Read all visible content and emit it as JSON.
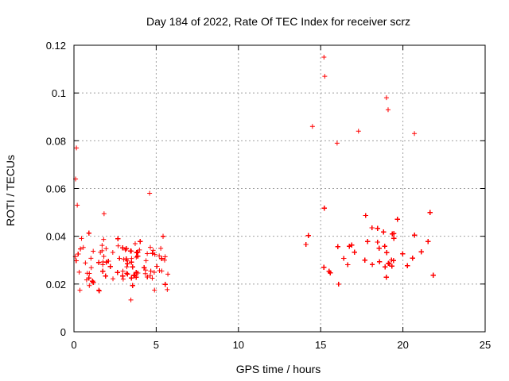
{
  "chart_data": {
    "type": "scatter",
    "title": "Day 184 of 2022, Rate Of TEC Index for receiver scrz",
    "xlabel": "GPS time / hours",
    "ylabel": "ROTI / TECUs",
    "xlim": [
      0,
      25
    ],
    "ylim": [
      0,
      0.12
    ],
    "x_ticks": [
      0,
      5,
      10,
      15,
      20,
      25
    ],
    "x_tick_labels": [
      "0",
      "5",
      "10",
      "15",
      "20",
      "25"
    ],
    "y_ticks": [
      0,
      0.02,
      0.04,
      0.06,
      0.08,
      0.1,
      0.12
    ],
    "y_tick_labels": [
      "0",
      "0.02",
      "0.04",
      "0.06",
      "0.08",
      "0.1",
      "0.12"
    ],
    "grid": true,
    "marker": "+",
    "colors": {
      "points": "#ff0000",
      "grid": "#a0a0a0",
      "axes": "#000000"
    },
    "series": [
      {
        "name": "ROTI",
        "segments": [
          {
            "x_start": 0.0,
            "x_end": 5.8,
            "y_typical": [
              0.008,
              0.04
            ]
          },
          {
            "x_start": 13.9,
            "x_end": 22.2,
            "y_typical": [
              0.008,
              0.05
            ]
          }
        ],
        "notable_points": [
          {
            "x": 0.15,
            "y": 0.077
          },
          {
            "x": 0.1,
            "y": 0.064
          },
          {
            "x": 0.2,
            "y": 0.053
          },
          {
            "x": 4.6,
            "y": 0.058
          },
          {
            "x": 15.2,
            "y": 0.115
          },
          {
            "x": 15.25,
            "y": 0.107
          },
          {
            "x": 19.0,
            "y": 0.098
          },
          {
            "x": 19.1,
            "y": 0.093
          },
          {
            "x": 14.5,
            "y": 0.086
          },
          {
            "x": 20.7,
            "y": 0.083
          },
          {
            "x": 17.3,
            "y": 0.084
          },
          {
            "x": 16.0,
            "y": 0.079
          }
        ]
      }
    ]
  }
}
